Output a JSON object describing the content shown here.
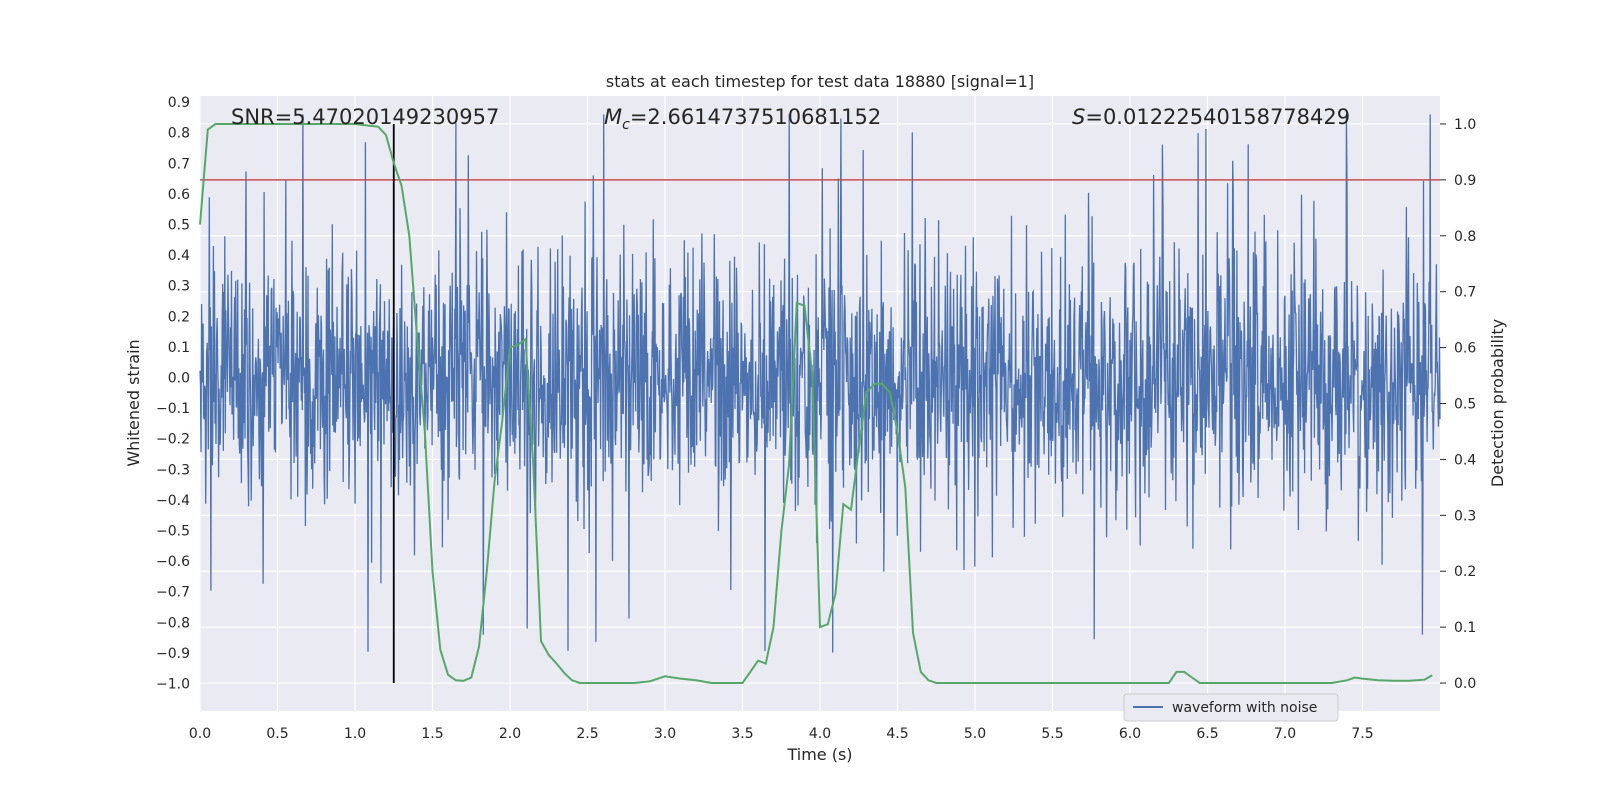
{
  "chart_data": {
    "type": "line",
    "title": "stats at each timestep for test data 18880 [signal=1]",
    "xlabel": "Time (s)",
    "ylabel": "Whitened strain",
    "y2label": "Detection probability",
    "xlim": [
      0,
      8
    ],
    "ylim": [
      -1.09,
      0.92
    ],
    "y2lim": [
      -0.05,
      1.05
    ],
    "xticks": [
      "0.0",
      "0.5",
      "1.0",
      "1.5",
      "2.0",
      "2.5",
      "3.0",
      "3.5",
      "4.0",
      "4.5",
      "5.0",
      "5.5",
      "6.0",
      "6.5",
      "7.0",
      "7.5"
    ],
    "yticks": [
      "0.9",
      "0.8",
      "0.7",
      "0.6",
      "0.5",
      "0.4",
      "0.3",
      "0.2",
      "0.1",
      "0.0",
      "-0.1",
      "-0.2",
      "-0.3",
      "-0.4",
      "-0.5",
      "-0.6",
      "-0.7",
      "-0.8",
      "-0.9",
      "-1.0"
    ],
    "y2ticks": [
      "0.0",
      "0.1",
      "0.2",
      "0.3",
      "0.4",
      "0.5",
      "0.6",
      "0.7",
      "0.8",
      "0.9",
      "1.0"
    ],
    "annotations": {
      "snr": "SNR=5.47020149230957",
      "mc_symbol": "M",
      "mc_sub": "c",
      "mc_value": "=2.6614737510681152",
      "s_symbol": "S",
      "s_value": "=0.01222540158778429"
    },
    "legend": {
      "label": "waveform with noise",
      "position": "lower-right"
    },
    "threshold": {
      "value": 0.9,
      "axis": "right",
      "color": "#c44e52"
    },
    "event_marker": {
      "x": 1.25,
      "color": "#000000"
    },
    "series": [
      {
        "name": "waveform with noise",
        "color": "#4c72b0",
        "axis": "left",
        "sample_rate": 2048,
        "seed": 18880,
        "typical_envelope": [
          -0.5,
          0.5
        ],
        "extremes": [
          -1.0,
          0.86
        ]
      },
      {
        "name": "detection probability",
        "color": "#55a868",
        "axis": "right",
        "x": [
          0.0,
          0.05,
          0.1,
          0.2,
          0.4,
          0.6,
          0.8,
          1.0,
          1.15,
          1.2,
          1.25,
          1.3,
          1.35,
          1.4,
          1.45,
          1.5,
          1.55,
          1.6,
          1.65,
          1.7,
          1.75,
          1.8,
          1.85,
          1.9,
          1.95,
          2.0,
          2.05,
          2.1,
          2.15,
          2.2,
          2.25,
          2.3,
          2.35,
          2.4,
          2.45,
          2.5,
          2.6,
          2.8,
          2.9,
          3.0,
          3.1,
          3.2,
          3.3,
          3.4,
          3.5,
          3.55,
          3.6,
          3.65,
          3.7,
          3.75,
          3.8,
          3.85,
          3.9,
          3.95,
          4.0,
          4.05,
          4.1,
          4.15,
          4.2,
          4.25,
          4.3,
          4.35,
          4.4,
          4.45,
          4.5,
          4.55,
          4.6,
          4.65,
          4.7,
          4.75,
          4.8,
          4.85,
          4.9,
          5.0,
          5.2,
          5.4,
          5.6,
          5.8,
          6.0,
          6.2,
          6.25,
          6.3,
          6.35,
          6.4,
          6.45,
          6.5,
          6.6,
          6.8,
          7.0,
          7.2,
          7.3,
          7.4,
          7.45,
          7.5,
          7.6,
          7.7,
          7.8,
          7.9,
          7.95
        ],
        "y": [
          0.82,
          0.99,
          1.0,
          1.0,
          1.0,
          1.0,
          1.0,
          1.0,
          0.995,
          0.98,
          0.93,
          0.89,
          0.8,
          0.62,
          0.45,
          0.2,
          0.06,
          0.015,
          0.005,
          0.004,
          0.01,
          0.065,
          0.2,
          0.36,
          0.47,
          0.6,
          0.605,
          0.615,
          0.39,
          0.075,
          0.05,
          0.035,
          0.018,
          0.005,
          0.0,
          0.0,
          0.0,
          0.0,
          0.003,
          0.012,
          0.008,
          0.005,
          0.0,
          0.0,
          0.0,
          0.02,
          0.04,
          0.035,
          0.1,
          0.27,
          0.39,
          0.68,
          0.675,
          0.55,
          0.1,
          0.105,
          0.16,
          0.32,
          0.31,
          0.42,
          0.52,
          0.535,
          0.535,
          0.52,
          0.45,
          0.35,
          0.09,
          0.02,
          0.005,
          0.0,
          0.0,
          0.0,
          0.0,
          0.0,
          0.0,
          0.0,
          0.0,
          0.0,
          0.0,
          0.0,
          0.0,
          0.02,
          0.02,
          0.01,
          0.0,
          0.0,
          0.0,
          0.0,
          0.0,
          0.0,
          0.0,
          0.005,
          0.01,
          0.008,
          0.005,
          0.004,
          0.004,
          0.006,
          0.014
        ]
      }
    ]
  }
}
